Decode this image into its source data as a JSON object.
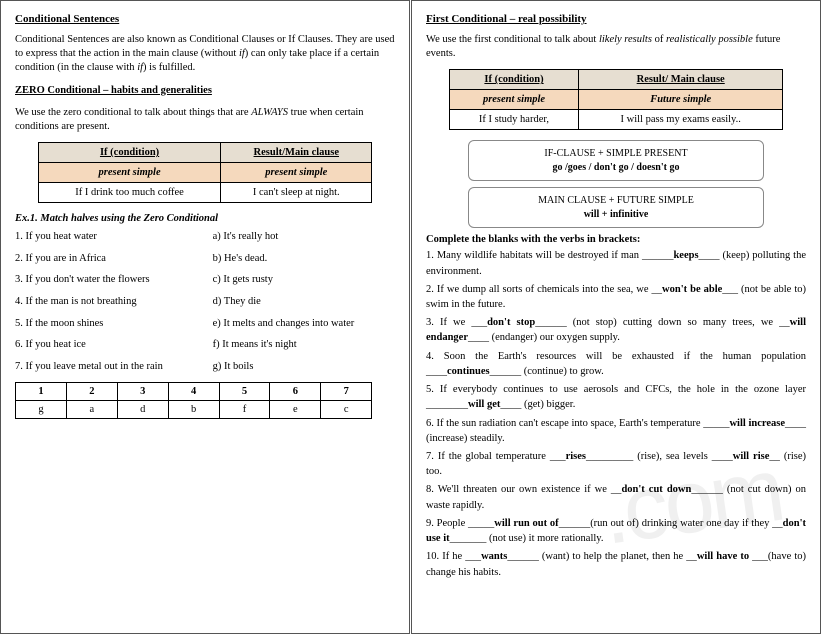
{
  "left": {
    "title": "Conditional Sentences",
    "intro": "Conditional Sentences are also known as Conditional Clauses or If Clauses. They are used to express that the action in the main clause (without if) can only take place if a certain condition (in the clause with if) is fulfilled.",
    "zero_title": "ZERO Conditional – habits and generalities",
    "zero_intro_a": "We use the zero conditional to talk about things that are ",
    "zero_intro_b": "ALWAYS",
    "zero_intro_c": " true when certain conditions are present.",
    "table": {
      "header_bg": "#e6ded1",
      "tense_bg": "#f5d9bd",
      "h1": "If  (condition)",
      "h2": "Result/Main clause",
      "t1": "present simple",
      "t2": "present simple",
      "e1": "If I drink too much coffee",
      "e2": "I can't sleep at night."
    },
    "ex1_title": "Ex.1. Match halves using the Zero Conditional",
    "match": [
      {
        "l": "1. If you heat water",
        "r": "a) It's really hot"
      },
      {
        "l": "2. If you are in Africa",
        "r": "b) He's dead."
      },
      {
        "l": "3. If you don't water the flowers",
        "r": "c) It gets rusty"
      },
      {
        "l": "4. If the man is not breathing",
        "r": "d) They die"
      },
      {
        "l": "5. If the moon shines",
        "r": "e)  It melts and changes into water"
      },
      {
        "l": "6. If you heat ice",
        "r": "f) It means it's night"
      },
      {
        "l": "7.  If you leave metal out in the rain",
        "r": "g)  It boils"
      }
    ],
    "answers": {
      "nums": [
        "1",
        "2",
        "3",
        "4",
        "5",
        "6",
        "7"
      ],
      "letters": [
        "g",
        "a",
        "d",
        "b",
        "f",
        "e",
        "c"
      ]
    }
  },
  "right": {
    "title": "First Conditional – real possibility",
    "intro_a": "We use the first conditional to talk about ",
    "intro_b": "likely results",
    "intro_c": " of ",
    "intro_d": "realistically possible",
    "intro_e": " future events.",
    "table": {
      "h1": "If  (condition)",
      "h2": "Result/ Main clause",
      "t1": "present simple",
      "t2": "Future simple",
      "e1": "If I study harder,",
      "e2": "I will pass my exams easily.."
    },
    "box1a": "IF-CLAUSE + SIMPLE PRESENT",
    "box1b": "go /goes / don't go / doesn't go",
    "box2a": "MAIN CLAUSE + FUTURE SIMPLE",
    "box2b": "will + infinitive",
    "blanks_title": "Complete the blanks with the verbs in brackets:",
    "items": [
      {
        "pre": "1. Many wildlife habitats will be destroyed if man ______",
        "ans": "keeps",
        "post": "____ (keep) polluting the environment."
      },
      {
        "pre": "2. If we dump all sorts of chemicals into the sea, we __",
        "ans": "won't be able",
        "post": "___ (not be able to) swim in the future."
      },
      {
        "pre": "3. If we ___",
        "ans": "don't stop",
        "post": "______ (not stop) cutting down so many trees, we __",
        "ans2": "will endanger",
        "post2": "____ (endanger) our oxygen supply."
      },
      {
        "pre": "4. Soon the Earth's resources will be exhausted if the human population ____",
        "ans": "continues",
        "post": "______ (continue) to grow."
      },
      {
        "pre": "5. If everybody continues to use aerosols and CFCs, the hole in the ozone layer ________",
        "ans": "will get",
        "post": "____ (get) bigger."
      },
      {
        "pre": "6. If the sun radiation can't escape into space, Earth's temperature _____",
        "ans": "will increase",
        "post": "____ (increase) steadily."
      },
      {
        "pre": "7. If the global temperature ___",
        "ans": "rises",
        "post": "_________ (rise), sea levels ____",
        "ans2": "will rise",
        "post2": "__ (rise) too."
      },
      {
        "pre": "8. We'll threaten our own existence if we __",
        "ans": "don't cut down",
        "post": "______ (not cut down) on waste rapidly."
      },
      {
        "pre": "9. People _____",
        "ans": "will run out of",
        "post": "______(run out of) drinking water one day if they __",
        "ans2": "don't use it",
        "post2": "_______ (not use) it more rationally."
      },
      {
        "pre": "10. If he ___",
        "ans": "wants",
        "post": "______ (want) to help the planet, then he __",
        "ans2": "will have to",
        "post2": " ___(have to) change his habits."
      }
    ]
  }
}
